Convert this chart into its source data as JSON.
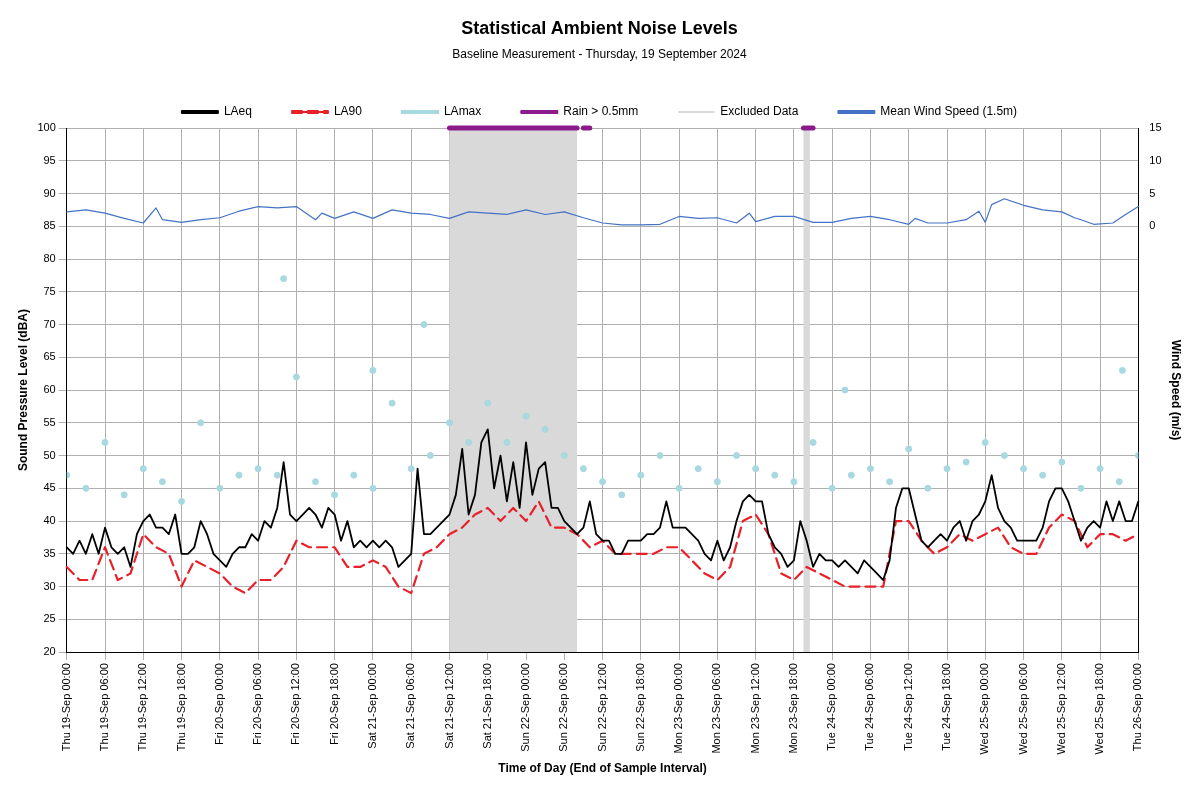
{
  "chart_data": {
    "type": "line",
    "title": "Statistical Ambient Noise Levels",
    "subtitle": "Baseline Measurement - Thursday, 19 September 2024",
    "xlabel": "Time of Day (End of Sample Interval)",
    "ylabel": "Sound Pressure Level (dBA)",
    "y2label": "Wind Speed (m/s)",
    "x": [
      "2024-09-19T00:00",
      "2024-09-19T01:00",
      "2024-09-19T02:00",
      "2024-09-19T03:00",
      "2024-09-19T04:00",
      "2024-09-19T05:00",
      "2024-09-19T06:00",
      "2024-09-19T07:00",
      "2024-09-19T08:00",
      "2024-09-19T09:00",
      "2024-09-19T10:00",
      "2024-09-19T11:00",
      "2024-09-19T12:00",
      "2024-09-19T13:00",
      "2024-09-19T14:00",
      "2024-09-19T15:00",
      "2024-09-19T16:00",
      "2024-09-19T17:00",
      "2024-09-19T18:00",
      "2024-09-19T19:00",
      "2024-09-19T20:00",
      "2024-09-19T21:00",
      "2024-09-19T22:00",
      "2024-09-19T23:00",
      "2024-09-20T00:00",
      "2024-09-20T01:00",
      "2024-09-20T02:00",
      "2024-09-20T03:00",
      "2024-09-20T04:00",
      "2024-09-20T05:00",
      "2024-09-20T06:00",
      "2024-09-20T07:00",
      "2024-09-20T08:00",
      "2024-09-20T09:00",
      "2024-09-20T10:00",
      "2024-09-20T11:00",
      "2024-09-20T12:00",
      "2024-09-20T13:00",
      "2024-09-20T14:00",
      "2024-09-20T15:00",
      "2024-09-20T16:00",
      "2024-09-20T17:00",
      "2024-09-20T18:00",
      "2024-09-20T19:00",
      "2024-09-20T20:00",
      "2024-09-20T21:00",
      "2024-09-20T22:00",
      "2024-09-20T23:00",
      "2024-09-21T00:00",
      "2024-09-21T01:00",
      "2024-09-21T02:00",
      "2024-09-21T03:00",
      "2024-09-21T04:00",
      "2024-09-21T05:00",
      "2024-09-21T06:00",
      "2024-09-21T07:00",
      "2024-09-21T08:00",
      "2024-09-21T09:00",
      "2024-09-21T10:00",
      "2024-09-21T11:00",
      "2024-09-21T12:00",
      "2024-09-21T13:00",
      "2024-09-21T14:00",
      "2024-09-21T15:00",
      "2024-09-21T16:00",
      "2024-09-21T17:00",
      "2024-09-21T18:00",
      "2024-09-21T19:00",
      "2024-09-21T20:00",
      "2024-09-21T21:00",
      "2024-09-21T22:00",
      "2024-09-21T23:00",
      "2024-09-22T00:00",
      "2024-09-22T01:00",
      "2024-09-22T02:00",
      "2024-09-22T03:00",
      "2024-09-22T04:00",
      "2024-09-22T05:00",
      "2024-09-22T06:00",
      "2024-09-22T07:00",
      "2024-09-22T08:00",
      "2024-09-22T09:00",
      "2024-09-22T10:00",
      "2024-09-22T11:00",
      "2024-09-22T12:00",
      "2024-09-22T13:00",
      "2024-09-22T14:00",
      "2024-09-22T15:00",
      "2024-09-22T16:00",
      "2024-09-22T17:00",
      "2024-09-22T18:00",
      "2024-09-22T19:00",
      "2024-09-22T20:00",
      "2024-09-22T21:00",
      "2024-09-22T22:00",
      "2024-09-22T23:00",
      "2024-09-23T00:00",
      "2024-09-23T01:00",
      "2024-09-23T02:00",
      "2024-09-23T03:00",
      "2024-09-23T04:00",
      "2024-09-23T05:00",
      "2024-09-23T06:00",
      "2024-09-23T07:00",
      "2024-09-23T08:00",
      "2024-09-23T09:00",
      "2024-09-23T10:00",
      "2024-09-23T11:00",
      "2024-09-23T12:00",
      "2024-09-23T13:00",
      "2024-09-23T14:00",
      "2024-09-23T15:00",
      "2024-09-23T16:00",
      "2024-09-23T17:00",
      "2024-09-23T18:00",
      "2024-09-23T19:00",
      "2024-09-23T20:00",
      "2024-09-23T21:00",
      "2024-09-23T22:00",
      "2024-09-23T23:00",
      "2024-09-24T00:00",
      "2024-09-24T01:00",
      "2024-09-24T02:00",
      "2024-09-24T03:00",
      "2024-09-24T04:00",
      "2024-09-24T05:00",
      "2024-09-24T06:00",
      "2024-09-24T07:00",
      "2024-09-24T08:00",
      "2024-09-24T09:00",
      "2024-09-24T10:00",
      "2024-09-24T11:00",
      "2024-09-24T12:00",
      "2024-09-24T13:00",
      "2024-09-24T14:00",
      "2024-09-24T15:00",
      "2024-09-24T16:00",
      "2024-09-24T17:00",
      "2024-09-24T18:00",
      "2024-09-24T19:00",
      "2024-09-24T20:00",
      "2024-09-24T21:00",
      "2024-09-24T22:00",
      "2024-09-24T23:00",
      "2024-09-25T00:00",
      "2024-09-25T01:00",
      "2024-09-25T02:00",
      "2024-09-25T03:00",
      "2024-09-25T04:00",
      "2024-09-25T05:00",
      "2024-09-25T06:00",
      "2024-09-25T07:00",
      "2024-09-25T08:00",
      "2024-09-25T09:00",
      "2024-09-25T10:00",
      "2024-09-25T11:00",
      "2024-09-25T12:00",
      "2024-09-25T13:00",
      "2024-09-25T14:00",
      "2024-09-25T15:00",
      "2024-09-25T16:00",
      "2024-09-25T17:00",
      "2024-09-25T18:00",
      "2024-09-25T19:00",
      "2024-09-25T20:00",
      "2024-09-25T21:00",
      "2024-09-25T22:00",
      "2024-09-25T23:00",
      "2024-09-26T00:00"
    ],
    "series": [
      {
        "name": "LAeq",
        "color": "#000000",
        "line_style": "solid",
        "values": [
          36,
          35,
          37,
          35,
          38,
          35,
          39,
          36,
          35,
          36,
          33,
          38,
          40,
          41,
          39,
          39,
          38,
          41,
          35,
          35,
          36,
          40,
          38,
          35,
          34,
          33,
          35,
          36,
          36,
          38,
          37,
          40,
          39,
          42,
          49,
          41,
          40,
          41,
          42,
          41,
          39,
          42,
          41,
          37,
          40,
          36,
          37,
          36,
          37,
          36,
          37,
          36,
          33,
          34,
          35,
          48,
          38,
          38,
          39,
          40,
          41,
          44,
          51,
          41,
          44,
          52,
          54,
          45,
          50,
          43,
          49,
          42,
          52,
          44,
          48,
          49,
          42,
          42,
          40,
          39,
          38,
          39,
          43,
          38,
          37,
          37,
          35,
          35,
          37,
          37,
          37,
          38,
          38,
          39,
          43,
          39,
          39,
          39,
          38,
          37,
          35,
          34,
          37,
          34,
          36,
          40,
          43,
          44,
          43,
          43,
          38,
          36,
          35,
          33,
          34,
          40,
          37,
          33,
          35,
          34,
          34,
          33,
          34,
          33,
          32,
          34,
          33,
          32,
          31,
          34,
          42,
          45,
          45,
          41,
          37,
          36,
          37,
          38,
          37,
          39,
          40,
          37,
          40,
          41,
          43,
          47,
          42,
          40,
          39,
          37,
          37,
          37,
          37,
          39,
          43,
          45,
          45,
          43,
          40,
          37,
          39,
          40,
          39,
          43,
          40,
          43,
          40,
          40,
          43
        ]
      },
      {
        "name": "LA90",
        "color": "#e8202a",
        "line_style": "dashed",
        "x": [
          "2024-09-19T00:00",
          "2024-09-19T02:00",
          "2024-09-19T04:00",
          "2024-09-19T06:00",
          "2024-09-19T08:00",
          "2024-09-19T10:00",
          "2024-09-19T12:00",
          "2024-09-19T14:00",
          "2024-09-19T16:00",
          "2024-09-19T18:00",
          "2024-09-19T20:00",
          "2024-09-19T22:00",
          "2024-09-20T00:00",
          "2024-09-20T02:00",
          "2024-09-20T04:00",
          "2024-09-20T06:00",
          "2024-09-20T08:00",
          "2024-09-20T10:00",
          "2024-09-20T12:00",
          "2024-09-20T14:00",
          "2024-09-20T16:00",
          "2024-09-20T18:00",
          "2024-09-20T20:00",
          "2024-09-20T22:00",
          "2024-09-21T00:00",
          "2024-09-21T02:00",
          "2024-09-21T04:00",
          "2024-09-21T06:00",
          "2024-09-21T08:00",
          "2024-09-21T10:00",
          "2024-09-21T12:00",
          "2024-09-21T14:00",
          "2024-09-21T16:00",
          "2024-09-21T18:00",
          "2024-09-21T20:00",
          "2024-09-21T22:00",
          "2024-09-22T00:00",
          "2024-09-22T02:00",
          "2024-09-22T04:00",
          "2024-09-22T06:00",
          "2024-09-22T08:00",
          "2024-09-22T10:00",
          "2024-09-22T12:00",
          "2024-09-22T14:00",
          "2024-09-22T16:00",
          "2024-09-22T18:00",
          "2024-09-22T20:00",
          "2024-09-22T22:00",
          "2024-09-23T00:00",
          "2024-09-23T02:00",
          "2024-09-23T04:00",
          "2024-09-23T06:00",
          "2024-09-23T08:00",
          "2024-09-23T10:00",
          "2024-09-23T12:00",
          "2024-09-23T14:00",
          "2024-09-23T16:00",
          "2024-09-23T18:00",
          "2024-09-23T20:00",
          "2024-09-23T22:00",
          "2024-09-24T00:00",
          "2024-09-24T02:00",
          "2024-09-24T04:00",
          "2024-09-24T06:00",
          "2024-09-24T08:00",
          "2024-09-24T10:00",
          "2024-09-24T12:00",
          "2024-09-24T14:00",
          "2024-09-24T16:00",
          "2024-09-24T18:00",
          "2024-09-24T20:00",
          "2024-09-24T22:00",
          "2024-09-25T00:00",
          "2024-09-25T02:00",
          "2024-09-25T04:00",
          "2024-09-25T06:00",
          "2024-09-25T08:00",
          "2024-09-25T10:00",
          "2024-09-25T12:00",
          "2024-09-25T14:00",
          "2024-09-25T16:00",
          "2024-09-25T18:00",
          "2024-09-25T20:00",
          "2024-09-25T22:00",
          "2024-09-26T00:00"
        ],
        "values": [
          33,
          31,
          31,
          36,
          31,
          32,
          38,
          36,
          35,
          30,
          34,
          33,
          32,
          30,
          29,
          31,
          31,
          33,
          37,
          36,
          36,
          36,
          33,
          33,
          34,
          33,
          30,
          29,
          35,
          36,
          38,
          39,
          41,
          42,
          40,
          42,
          40,
          43,
          39,
          39,
          38,
          36,
          37,
          35,
          35,
          35,
          35,
          36,
          36,
          34,
          32,
          31,
          33,
          40,
          41,
          38,
          32,
          31,
          33,
          32,
          31,
          30,
          30,
          30,
          30,
          40,
          40,
          37,
          35,
          36,
          38,
          37,
          38,
          39,
          36,
          35,
          35,
          39,
          41,
          40,
          36,
          38,
          38,
          37,
          38
        ]
      },
      {
        "name": "LAmax",
        "type": "scatter",
        "color": "#a8d8e0",
        "marker": "circle",
        "x": [
          "2024-09-19T00:00",
          "2024-09-19T03:00",
          "2024-09-19T06:00",
          "2024-09-19T09:00",
          "2024-09-19T12:00",
          "2024-09-19T15:00",
          "2024-09-19T18:00",
          "2024-09-19T21:00",
          "2024-09-20T00:00",
          "2024-09-20T03:00",
          "2024-09-20T06:00",
          "2024-09-20T09:00",
          "2024-09-20T10:00",
          "2024-09-20T12:00",
          "2024-09-20T15:00",
          "2024-09-20T18:00",
          "2024-09-20T21:00",
          "2024-09-21T00:00",
          "2024-09-21T00:00",
          "2024-09-21T03:00",
          "2024-09-21T06:00",
          "2024-09-21T08:00",
          "2024-09-21T09:00",
          "2024-09-21T12:00",
          "2024-09-21T15:00",
          "2024-09-21T18:00",
          "2024-09-21T21:00",
          "2024-09-22T00:00",
          "2024-09-22T03:00",
          "2024-09-22T06:00",
          "2024-09-22T09:00",
          "2024-09-22T12:00",
          "2024-09-22T15:00",
          "2024-09-22T18:00",
          "2024-09-22T21:00",
          "2024-09-23T00:00",
          "2024-09-23T03:00",
          "2024-09-23T06:00",
          "2024-09-23T09:00",
          "2024-09-23T12:00",
          "2024-09-23T15:00",
          "2024-09-23T18:00",
          "2024-09-23T21:00",
          "2024-09-24T00:00",
          "2024-09-24T02:00",
          "2024-09-24T03:00",
          "2024-09-24T06:00",
          "2024-09-24T09:00",
          "2024-09-24T12:00",
          "2024-09-24T15:00",
          "2024-09-24T18:00",
          "2024-09-24T21:00",
          "2024-09-25T00:00",
          "2024-09-25T03:00",
          "2024-09-25T06:00",
          "2024-09-25T09:00",
          "2024-09-25T12:00",
          "2024-09-25T15:00",
          "2024-09-25T18:00",
          "2024-09-25T21:00",
          "2024-09-25T21:30",
          "2024-09-26T00:00"
        ],
        "values": [
          47,
          45,
          52,
          44,
          48,
          46,
          43,
          55,
          45,
          47,
          48,
          47,
          77,
          62,
          46,
          44,
          47,
          45,
          63,
          58,
          48,
          70,
          50,
          55,
          52,
          58,
          52,
          56,
          54,
          50,
          48,
          46,
          44,
          47,
          50,
          45,
          48,
          46,
          50,
          48,
          47,
          46,
          52,
          45,
          60,
          47,
          48,
          46,
          51,
          45,
          48,
          49,
          52,
          50,
          48,
          47,
          49,
          45,
          48,
          46,
          63,
          50
        ]
      },
      {
        "name": "Rain > 0.5mm",
        "color": "#8b1a8b",
        "line_style": "solid",
        "x": [
          "2024-09-21T12:00",
          "2024-09-22T08:00",
          "2024-09-22T08:30",
          "2024-09-22T09:00",
          "2024-09-22T10:00",
          "2024-09-22T10:30",
          "2024-09-23T19:30",
          "2024-09-23T21:00"
        ],
        "values": [
          100,
          100,
          null,
          100,
          100,
          null,
          100,
          100
        ]
      },
      {
        "name": "Mean Wind Speed (1.5m)",
        "color": "#4472c4",
        "line_style": "solid",
        "axis": "y2",
        "x": [
          "2024-09-19T00:00",
          "2024-09-19T03:00",
          "2024-09-19T06:00",
          "2024-09-19T09:00",
          "2024-09-19T12:00",
          "2024-09-19T14:00",
          "2024-09-19T15:00",
          "2024-09-19T18:00",
          "2024-09-19T21:00",
          "2024-09-20T00:00",
          "2024-09-20T03:00",
          "2024-09-20T06:00",
          "2024-09-20T09:00",
          "2024-09-20T12:00",
          "2024-09-20T15:00",
          "2024-09-20T16:00",
          "2024-09-20T18:00",
          "2024-09-20T21:00",
          "2024-09-21T00:00",
          "2024-09-21T03:00",
          "2024-09-21T06:00",
          "2024-09-21T09:00",
          "2024-09-21T12:00",
          "2024-09-21T15:00",
          "2024-09-21T18:00",
          "2024-09-21T21:00",
          "2024-09-22T00:00",
          "2024-09-22T03:00",
          "2024-09-22T06:00",
          "2024-09-22T09:00",
          "2024-09-22T12:00",
          "2024-09-22T15:00",
          "2024-09-22T18:00",
          "2024-09-22T21:00",
          "2024-09-23T00:00",
          "2024-09-23T03:00",
          "2024-09-23T06:00",
          "2024-09-23T09:00",
          "2024-09-23T11:00",
          "2024-09-23T12:00",
          "2024-09-23T15:00",
          "2024-09-23T18:00",
          "2024-09-23T21:00",
          "2024-09-24T00:00",
          "2024-09-24T03:00",
          "2024-09-24T06:00",
          "2024-09-24T09:00",
          "2024-09-24T12:00",
          "2024-09-24T13:00",
          "2024-09-24T15:00",
          "2024-09-24T18:00",
          "2024-09-24T21:00",
          "2024-09-24T23:00",
          "2024-09-25T00:00",
          "2024-09-25T01:00",
          "2024-09-25T03:00",
          "2024-09-25T06:00",
          "2024-09-25T09:00",
          "2024-09-25T12:00",
          "2024-09-25T14:00",
          "2024-09-25T15:00",
          "2024-09-25T17:00",
          "2024-09-25T20:00",
          "2024-09-25T22:00",
          "2024-09-26T00:00"
        ],
        "values": [
          2.2,
          2.5,
          2,
          1.2,
          0.5,
          2.8,
          1,
          0.6,
          1,
          1.3,
          2.3,
          3,
          2.8,
          3,
          1,
          2,
          1.2,
          2.2,
          1.2,
          2.5,
          2,
          1.8,
          1.2,
          2.2,
          2,
          1.8,
          2.5,
          1.8,
          2.2,
          1.3,
          0.5,
          0.2,
          0.2,
          0.3,
          1.5,
          1.2,
          1.3,
          0.5,
          2,
          0.7,
          1.5,
          1.5,
          0.6,
          0.6,
          1.2,
          1.5,
          1,
          0.3,
          1.2,
          0.5,
          0.5,
          1,
          2.3,
          0.6,
          3.3,
          4.2,
          3.2,
          2.5,
          2.2,
          1.3,
          1,
          0.3,
          0.5,
          1.8,
          3
        ]
      }
    ],
    "bands": [
      {
        "axis": "x",
        "from": "2024-09-21T12:00",
        "to": "2024-09-22T08:00",
        "label": "Excluded Data",
        "color": "#d9d9d9"
      },
      {
        "axis": "x",
        "from": "2024-09-23T19:30",
        "to": "2024-09-23T20:30",
        "color": "#d9d9d9"
      }
    ],
    "xlim": [
      "2024-09-19T00:00",
      "2024-09-26T00:00"
    ],
    "xticks": [
      {
        "value": "2024-09-19T00:00",
        "label": "Thu 19-Sep 00:00"
      },
      {
        "value": "2024-09-19T06:00",
        "label": "Thu 19-Sep 06:00"
      },
      {
        "value": "2024-09-19T12:00",
        "label": "Thu 19-Sep 12:00"
      },
      {
        "value": "2024-09-19T18:00",
        "label": "Thu 19-Sep 18:00"
      },
      {
        "value": "2024-09-20T00:00",
        "label": "Fri 20-Sep 00:00"
      },
      {
        "value": "2024-09-20T06:00",
        "label": "Fri 20-Sep 06:00"
      },
      {
        "value": "2024-09-20T12:00",
        "label": "Fri 20-Sep 12:00"
      },
      {
        "value": "2024-09-20T18:00",
        "label": "Fri 20-Sep 18:00"
      },
      {
        "value": "2024-09-21T00:00",
        "label": "Sat 21-Sep 00:00"
      },
      {
        "value": "2024-09-21T06:00",
        "label": "Sat 21-Sep 06:00"
      },
      {
        "value": "2024-09-21T12:00",
        "label": "Sat 21-Sep 12:00"
      },
      {
        "value": "2024-09-21T18:00",
        "label": "Sat 21-Sep 18:00"
      },
      {
        "value": "2024-09-22T00:00",
        "label": "Sun 22-Sep 00:00"
      },
      {
        "value": "2024-09-22T06:00",
        "label": "Sun 22-Sep 06:00"
      },
      {
        "value": "2024-09-22T12:00",
        "label": "Sun 22-Sep 12:00"
      },
      {
        "value": "2024-09-22T18:00",
        "label": "Sun 22-Sep 18:00"
      },
      {
        "value": "2024-09-23T00:00",
        "label": "Mon 23-Sep 00:00"
      },
      {
        "value": "2024-09-23T06:00",
        "label": "Mon 23-Sep 06:00"
      },
      {
        "value": "2024-09-23T12:00",
        "label": "Mon 23-Sep 12:00"
      },
      {
        "value": "2024-09-23T18:00",
        "label": "Mon 23-Sep 18:00"
      },
      {
        "value": "2024-09-24T00:00",
        "label": "Tue 24-Sep 00:00"
      },
      {
        "value": "2024-09-24T06:00",
        "label": "Tue 24-Sep 06:00"
      },
      {
        "value": "2024-09-24T12:00",
        "label": "Tue 24-Sep 12:00"
      },
      {
        "value": "2024-09-24T18:00",
        "label": "Tue 24-Sep 18:00"
      },
      {
        "value": "2024-09-25T00:00",
        "label": "Wed 25-Sep 00:00"
      },
      {
        "value": "2024-09-25T06:00",
        "label": "Wed 25-Sep 06:00"
      },
      {
        "value": "2024-09-25T12:00",
        "label": "Wed 25-Sep 12:00"
      },
      {
        "value": "2024-09-25T18:00",
        "label": "Wed 25-Sep 18:00"
      },
      {
        "value": "2024-09-26T00:00",
        "label": "Thu 26-Sep 00:00"
      }
    ],
    "ylim": [
      20,
      100
    ],
    "yticks": [
      20,
      25,
      30,
      35,
      40,
      45,
      50,
      55,
      60,
      65,
      70,
      75,
      80,
      85,
      90,
      95,
      100
    ],
    "y2lim": [
      -65,
      15
    ],
    "y2ticks": [
      0,
      5,
      10,
      15
    ],
    "grid": true,
    "legend": "top"
  }
}
